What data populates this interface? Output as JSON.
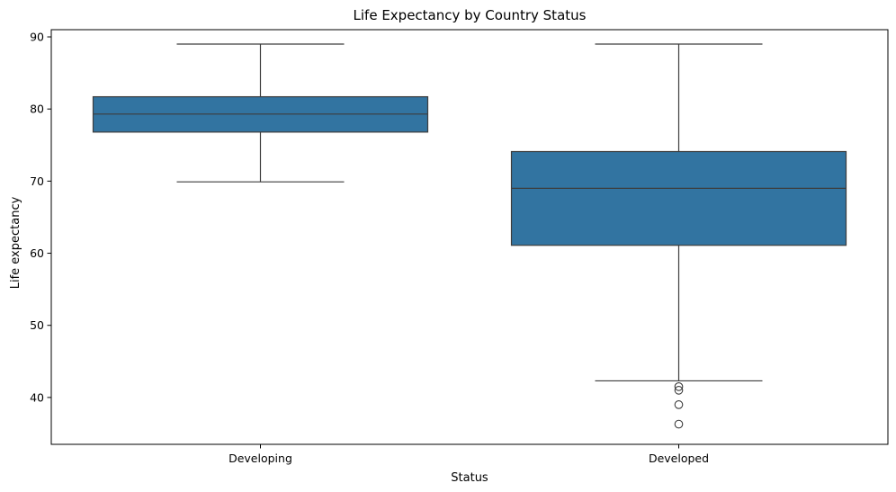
{
  "chart_data": {
    "type": "box",
    "title": "Life Expectancy by Country Status",
    "xlabel": "Status",
    "ylabel": "Life expectancy",
    "categories": [
      "Developing",
      "Developed"
    ],
    "ylim": [
      33.5,
      91
    ],
    "yticks": [
      40,
      50,
      60,
      70,
      80,
      90
    ],
    "grid": false,
    "box_color": "#3274a1",
    "line_color": "#3d3d3d",
    "boxes": [
      {
        "category": "Developing",
        "whisker_low": 69.9,
        "q1": 76.8,
        "median": 79.3,
        "q3": 81.7,
        "whisker_high": 89.0,
        "outliers": []
      },
      {
        "category": "Developed",
        "whisker_low": 42.3,
        "q1": 61.1,
        "median": 69.0,
        "q3": 74.1,
        "whisker_high": 89.0,
        "outliers": [
          41.5,
          41.0,
          39.0,
          36.3
        ]
      }
    ]
  }
}
